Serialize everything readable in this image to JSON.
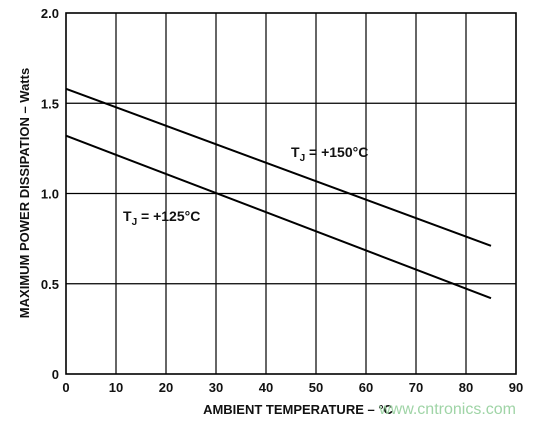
{
  "chart_data": {
    "type": "line",
    "title": "",
    "xlabel": "AMBIENT TEMPERATURE – °C",
    "ylabel": "MAXIMUM POWER DISSIPATION – Watts",
    "xlim": [
      0,
      90
    ],
    "ylim": [
      0,
      2.0
    ],
    "x_ticks": [
      "0",
      "10",
      "20",
      "30",
      "40",
      "50",
      "60",
      "70",
      "80",
      "90"
    ],
    "y_ticks": [
      "0",
      "0.5",
      "1.0",
      "1.5",
      "2.0"
    ],
    "grid": true,
    "series": [
      {
        "label_main": "T",
        "label_sub": "J",
        "label_rest": " = +150°C",
        "x": [
          0,
          85
        ],
        "y": [
          1.58,
          0.71
        ]
      },
      {
        "label_main": "T",
        "label_sub": "J",
        "label_rest": " = +125°C",
        "x": [
          0,
          85
        ],
        "y": [
          1.32,
          0.42
        ]
      }
    ],
    "colors": {
      "line": "#000000",
      "grid": "#000000",
      "watermark": "#9fd4a6"
    }
  },
  "watermark": "www.cntronics.com"
}
